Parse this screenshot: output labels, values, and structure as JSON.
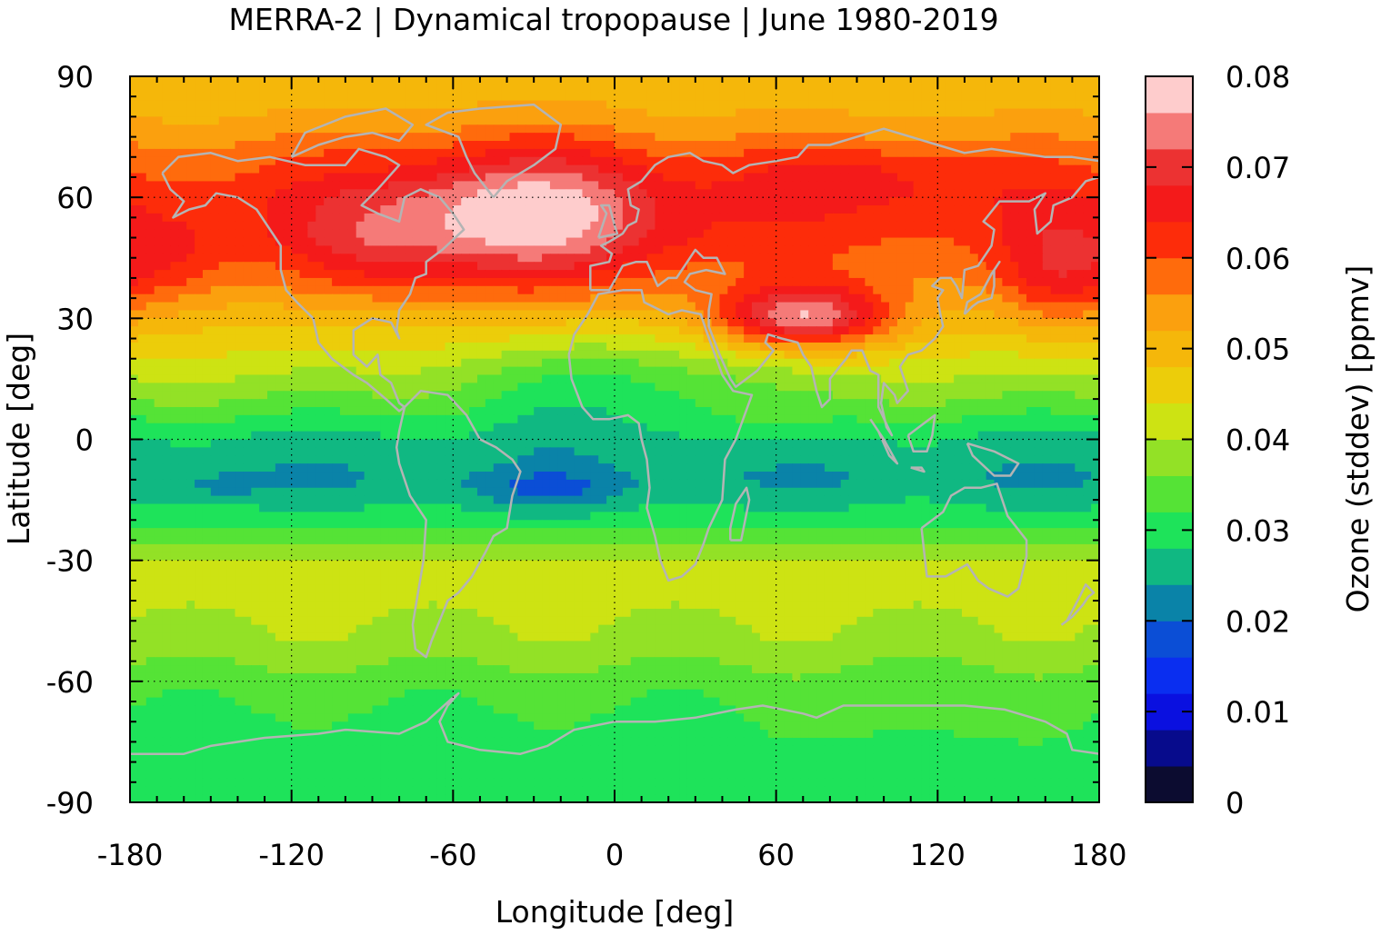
{
  "chart_data": {
    "type": "heatmap",
    "title": "MERRA-2 | Dynamical tropopause | June 1980-2019",
    "xlabel": "Longitude [deg]",
    "ylabel": "Latitude [deg]",
    "xlim": [
      -180,
      180
    ],
    "ylim": [
      -90,
      90
    ],
    "x_ticks": [
      "-180",
      "-120",
      "-60",
      "0",
      "60",
      "120",
      "180"
    ],
    "y_ticks": [
      "90",
      "60",
      "30",
      "0",
      "-30",
      "-60",
      "-90"
    ],
    "grid": true,
    "colorbar": {
      "label": "Ozone (stddev) [ppmv]",
      "range": [
        0,
        0.08
      ],
      "ticks": [
        "0.08",
        "0.07",
        "0.06",
        "0.05",
        "0.04",
        "0.03",
        "0.02",
        "0.01",
        "0"
      ],
      "levels": [
        {
          "lo": 0.0,
          "hi": 0.004,
          "color": "#0c0c30"
        },
        {
          "lo": 0.004,
          "hi": 0.008,
          "color": "#070b8c"
        },
        {
          "lo": 0.008,
          "hi": 0.012,
          "color": "#0a10e0"
        },
        {
          "lo": 0.012,
          "hi": 0.016,
          "color": "#0a2ef0"
        },
        {
          "lo": 0.016,
          "hi": 0.02,
          "color": "#0b4ed6"
        },
        {
          "lo": 0.02,
          "hi": 0.024,
          "color": "#0a83a8"
        },
        {
          "lo": 0.024,
          "hi": 0.028,
          "color": "#10b882"
        },
        {
          "lo": 0.028,
          "hi": 0.032,
          "color": "#1ee35a"
        },
        {
          "lo": 0.032,
          "hi": 0.036,
          "color": "#55e336"
        },
        {
          "lo": 0.036,
          "hi": 0.04,
          "color": "#93e126"
        },
        {
          "lo": 0.04,
          "hi": 0.044,
          "color": "#cde313"
        },
        {
          "lo": 0.044,
          "hi": 0.048,
          "color": "#eccd0a"
        },
        {
          "lo": 0.048,
          "hi": 0.052,
          "color": "#f5b70a"
        },
        {
          "lo": 0.052,
          "hi": 0.056,
          "color": "#fba00e"
        },
        {
          "lo": 0.056,
          "hi": 0.06,
          "color": "#ff6b0c"
        },
        {
          "lo": 0.06,
          "hi": 0.064,
          "color": "#fd2c0a"
        },
        {
          "lo": 0.064,
          "hi": 0.068,
          "color": "#f41a1a"
        },
        {
          "lo": 0.068,
          "hi": 0.072,
          "color": "#ec3232"
        },
        {
          "lo": 0.072,
          "hi": 0.076,
          "color": "#f57a78"
        },
        {
          "lo": 0.076,
          "hi": 0.08,
          "color": "#fecccc"
        }
      ]
    },
    "lat_profile": [
      {
        "lat": 90,
        "v": 0.049
      },
      {
        "lat": 80,
        "v": 0.052
      },
      {
        "lat": 70,
        "v": 0.058
      },
      {
        "lat": 60,
        "v": 0.062
      },
      {
        "lat": 50,
        "v": 0.061
      },
      {
        "lat": 40,
        "v": 0.056
      },
      {
        "lat": 30,
        "v": 0.049
      },
      {
        "lat": 20,
        "v": 0.043
      },
      {
        "lat": 10,
        "v": 0.036
      },
      {
        "lat": 0,
        "v": 0.027
      },
      {
        "lat": -10,
        "v": 0.024
      },
      {
        "lat": -20,
        "v": 0.03
      },
      {
        "lat": -30,
        "v": 0.04
      },
      {
        "lat": -40,
        "v": 0.041
      },
      {
        "lat": -50,
        "v": 0.039
      },
      {
        "lat": -60,
        "v": 0.034
      },
      {
        "lat": -70,
        "v": 0.031
      },
      {
        "lat": -80,
        "v": 0.03
      },
      {
        "lat": -90,
        "v": 0.03
      }
    ],
    "anomalies": [
      {
        "lon": -35,
        "lat": 55,
        "rlon": 55,
        "rlat": 17,
        "amp": 0.018
      },
      {
        "lon": -90,
        "lat": 48,
        "rlon": 30,
        "rlat": 12,
        "amp": 0.006
      },
      {
        "lon": 70,
        "lat": 30,
        "rlon": 32,
        "rlat": 8,
        "amp": 0.027
      },
      {
        "lon": 90,
        "lat": 65,
        "rlon": 45,
        "rlat": 8,
        "amp": 0.006
      },
      {
        "lon": -165,
        "lat": 45,
        "rlon": 22,
        "rlat": 12,
        "amp": 0.006
      },
      {
        "lon": 165,
        "lat": 40,
        "rlon": 22,
        "rlat": 14,
        "amp": 0.01
      },
      {
        "lon": -25,
        "lat": -13,
        "rlon": 28,
        "rlat": 5,
        "amp": -0.006
      },
      {
        "lon": -145,
        "lat": -12,
        "rlon": 12,
        "rlat": 3,
        "amp": -0.004
      },
      {
        "lon": 0,
        "lat": 15,
        "rlon": 60,
        "rlat": 12,
        "amp": -0.008
      },
      {
        "lon": 60,
        "lat": 5,
        "rlon": 25,
        "rlat": 8,
        "amp": 0.004
      },
      {
        "lon": 115,
        "lat": -70,
        "rlon": 45,
        "rlat": 5,
        "amp": 0.003
      }
    ]
  }
}
